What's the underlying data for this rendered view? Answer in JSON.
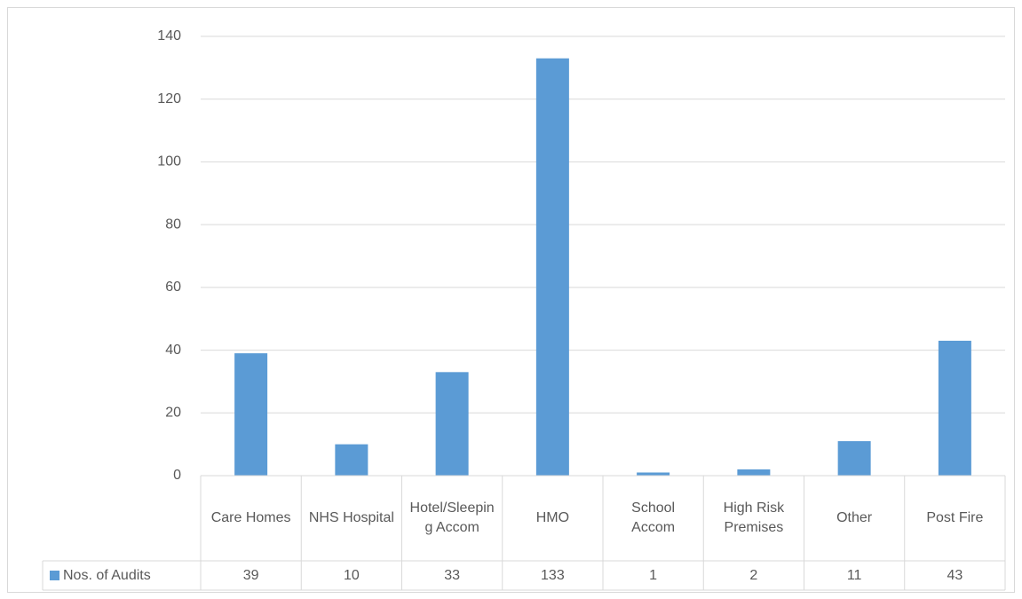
{
  "chart_data": {
    "type": "bar",
    "categories": [
      "Care Homes",
      "NHS Hospital",
      "Hotel/Sleeping Accom",
      "HMO",
      "School Accom",
      "High Risk Premises",
      "Other",
      "Post Fire"
    ],
    "series": [
      {
        "name": "Nos. of Audits",
        "color": "#5b9bd5",
        "values": [
          39,
          10,
          33,
          133,
          1,
          2,
          11,
          43
        ]
      }
    ],
    "ylim": [
      0,
      140
    ],
    "yticks": [
      0,
      20,
      40,
      60,
      80,
      100,
      120,
      140
    ],
    "grid": true,
    "data_table": true
  }
}
